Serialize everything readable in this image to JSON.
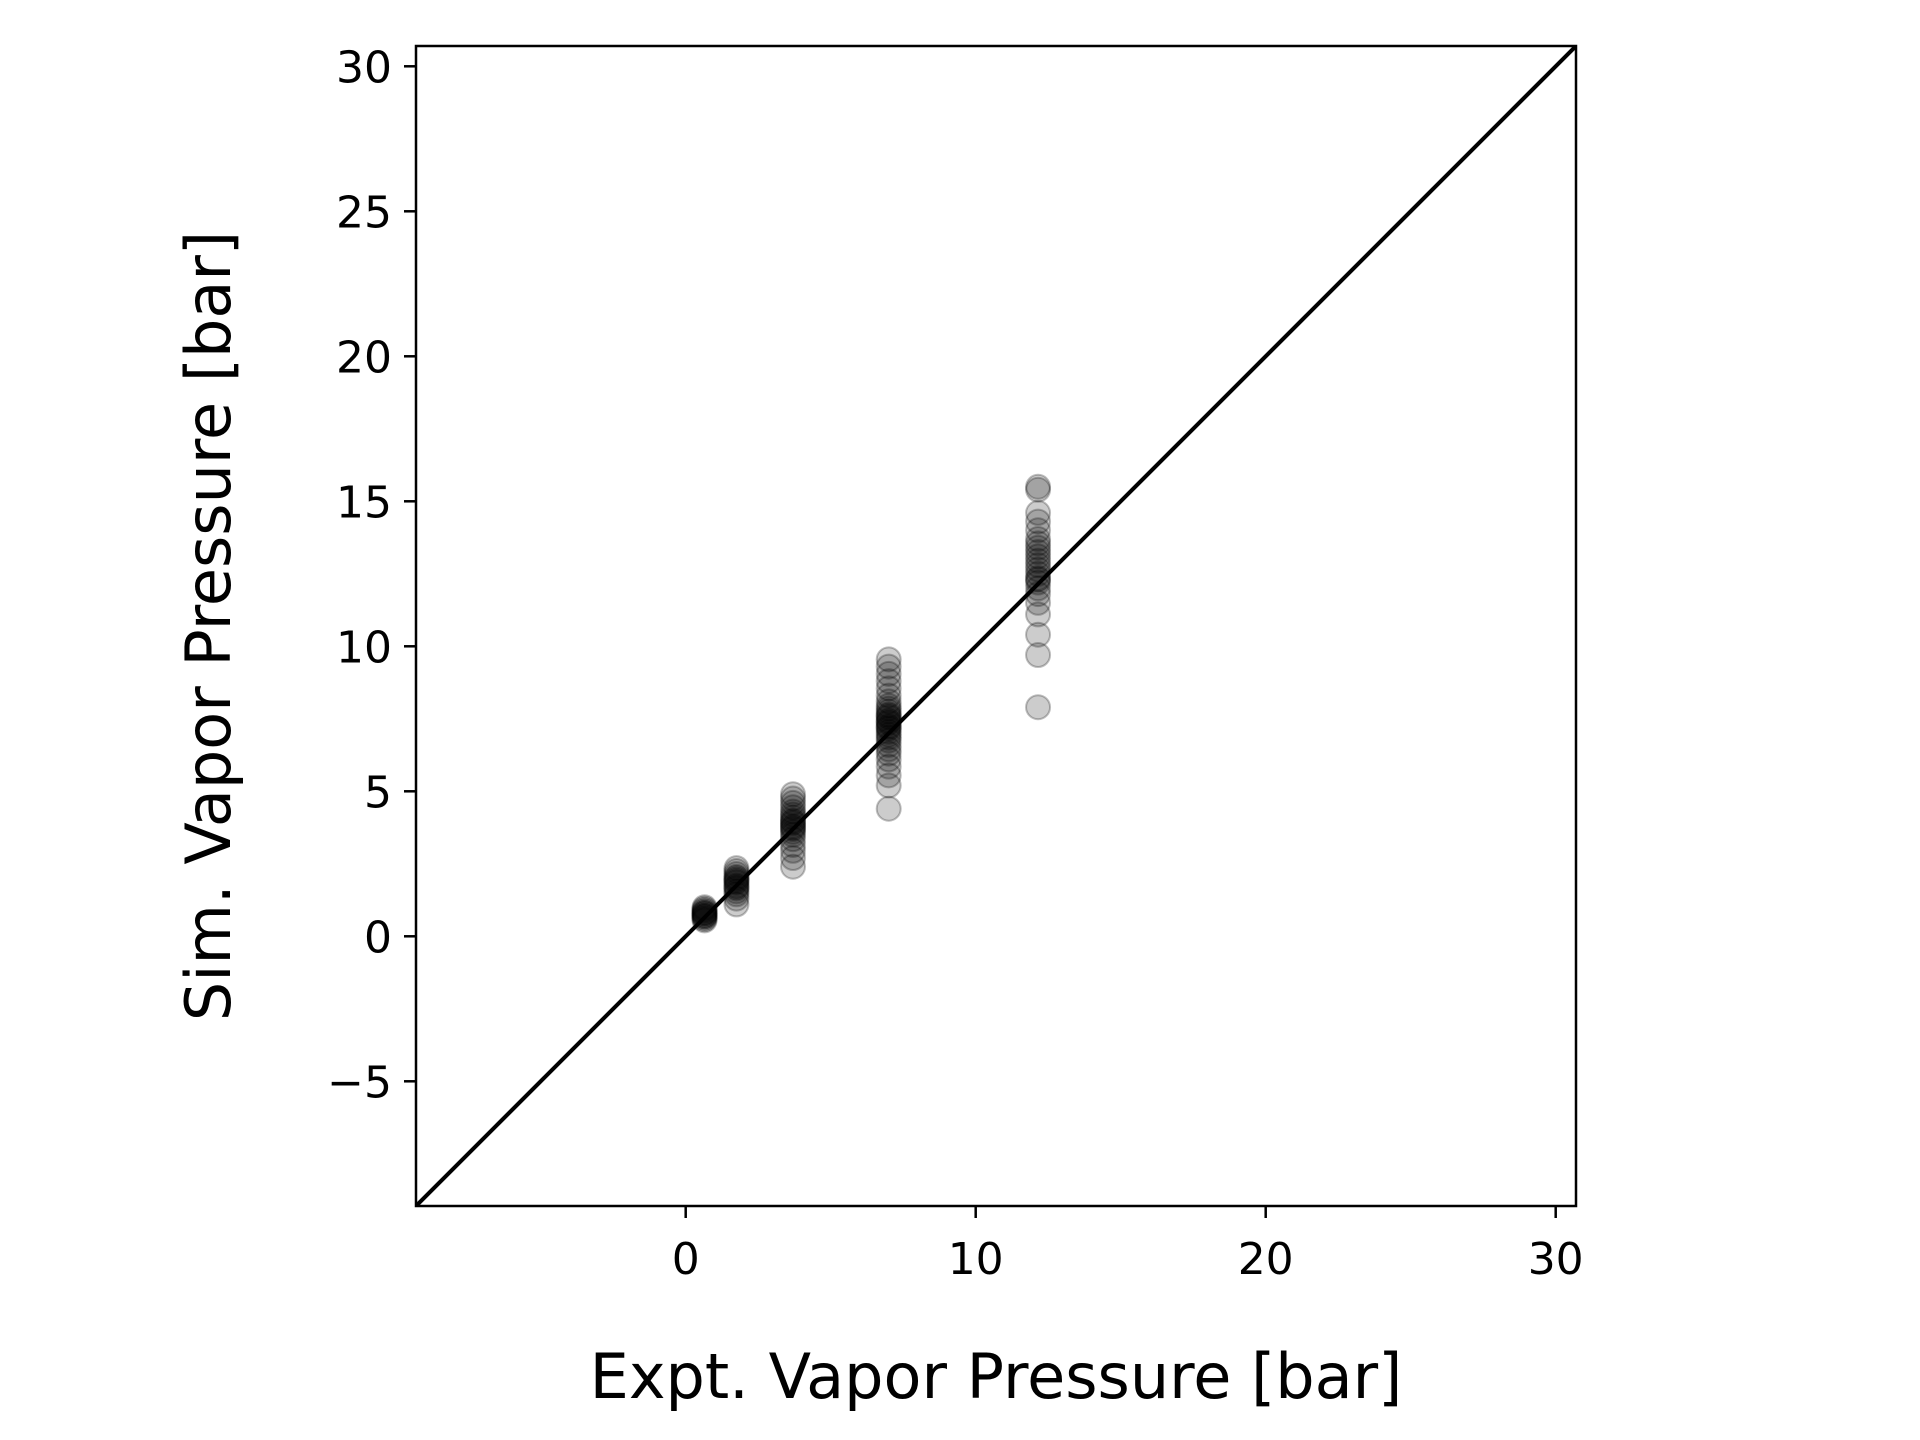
{
  "chart_data": {
    "type": "scatter",
    "title": "",
    "xlabel": "Expt. Vapor Pressure [bar]",
    "ylabel": "Sim. Vapor Pressure [bar]",
    "xlim": [
      -9.3,
      30.7
    ],
    "ylim": [
      -9.3,
      30.7
    ],
    "xticks": [
      0,
      10,
      20,
      30
    ],
    "yticks": [
      -5,
      0,
      5,
      10,
      15,
      20,
      25,
      30
    ],
    "ytick_labels": [
      "−5",
      "0",
      "5",
      "10",
      "15",
      "20",
      "25",
      "30"
    ],
    "xtick_labels": [
      "0",
      "10",
      "20",
      "30"
    ],
    "grid": false,
    "reference_line": {
      "x": [
        -9.3,
        30.7
      ],
      "y": [
        -9.3,
        30.7
      ],
      "color": "#000000"
    },
    "marker_color": "#000000",
    "marker_alpha": 0.2,
    "series": [
      {
        "x": [
          0.65,
          0.65,
          0.65,
          0.65,
          0.65,
          0.65,
          0.65,
          0.65,
          0.65,
          0.65,
          0.65,
          0.65,
          1.75,
          1.75,
          1.75,
          1.75,
          1.75,
          1.75,
          1.75,
          1.75,
          1.75,
          1.75,
          1.75,
          1.75,
          1.75,
          1.75,
          1.75,
          3.7,
          3.7,
          3.7,
          3.7,
          3.7,
          3.7,
          3.7,
          3.7,
          3.7,
          3.7,
          3.7,
          3.7,
          3.7,
          3.7,
          3.7,
          3.7,
          3.7,
          3.7,
          3.7,
          3.7,
          7.0,
          7.0,
          7.0,
          7.0,
          7.0,
          7.0,
          7.0,
          7.0,
          7.0,
          7.0,
          7.0,
          7.0,
          7.0,
          7.0,
          7.0,
          7.0,
          7.0,
          7.0,
          7.0,
          7.0,
          7.0,
          7.0,
          7.0,
          7.0,
          7.0,
          7.0,
          7.0,
          7.0,
          7.0,
          7.0,
          7.0,
          12.15,
          12.15,
          12.15,
          12.15,
          12.15,
          12.15,
          12.15,
          12.15,
          12.15,
          12.15,
          12.15,
          12.15,
          12.15,
          12.15,
          12.15,
          12.15,
          12.15,
          12.15,
          12.15,
          12.15,
          12.15,
          12.15,
          12.15,
          12.15
        ],
        "y": [
          0.55,
          0.6,
          0.65,
          0.7,
          0.75,
          0.8,
          0.85,
          0.9,
          0.95,
          1.0,
          0.7,
          0.8,
          1.1,
          1.3,
          1.45,
          1.55,
          1.65,
          1.75,
          1.85,
          1.95,
          2.05,
          2.15,
          2.25,
          2.35,
          1.7,
          1.9,
          2.0,
          2.4,
          2.7,
          2.95,
          3.15,
          3.35,
          3.5,
          3.6,
          3.7,
          3.8,
          3.9,
          4.0,
          4.1,
          4.2,
          4.3,
          4.45,
          4.6,
          4.75,
          4.9,
          3.75,
          3.95,
          4.4,
          5.2,
          5.55,
          5.85,
          6.1,
          6.3,
          6.45,
          6.6,
          6.75,
          6.85,
          6.95,
          7.05,
          7.15,
          7.25,
          7.35,
          7.45,
          7.55,
          7.65,
          7.75,
          7.85,
          7.95,
          8.1,
          8.3,
          8.55,
          8.8,
          9.05,
          9.3,
          9.55,
          7.2,
          7.4,
          7.6,
          7.9,
          9.7,
          10.4,
          11.1,
          11.5,
          11.8,
          12.0,
          12.2,
          12.35,
          12.5,
          12.65,
          12.8,
          12.95,
          13.1,
          13.25,
          13.4,
          13.55,
          13.7,
          14.0,
          14.3,
          14.6,
          15.4,
          15.5,
          12.3
        ]
      }
    ]
  }
}
